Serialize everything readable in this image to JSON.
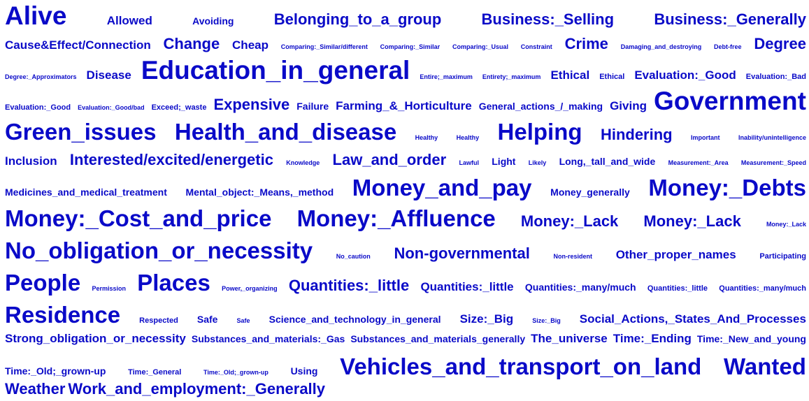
{
  "tag_cloud": {
    "color": "#0a0ac8",
    "rows": [
      [
        [
          "Alive",
          8
        ],
        [
          "Allowed",
          4
        ],
        [
          "Avoiding",
          3
        ],
        [
          "Belonging_to_a_group",
          5
        ],
        [
          "Business:_Selling",
          5
        ],
        [
          "Business:_Generally",
          5
        ]
      ],
      [
        [
          "Cause&Effect/Connection",
          4
        ],
        [
          "Change",
          5
        ],
        [
          "Cheap",
          4
        ],
        [
          "Comparing:_Similar/different",
          1
        ],
        [
          "Comparing:_Similar",
          1
        ],
        [
          "Comparing:_Usual",
          1
        ],
        [
          "Constraint",
          1
        ],
        [
          "Crime",
          5
        ],
        [
          "Damaging_and_destroying",
          1
        ],
        [
          "Debt-free",
          1
        ],
        [
          "Degree",
          5
        ]
      ],
      [
        [
          "Degree:_Approximators",
          1
        ],
        [
          "Disease",
          4
        ],
        [
          "Education_in_general",
          8
        ],
        [
          "Entire;_maximum",
          1
        ],
        [
          "Entirety;_maximum",
          1
        ],
        [
          "Ethical",
          4
        ],
        [
          "Ethical",
          2
        ],
        [
          "Evaluation:_Good",
          4
        ],
        [
          "Evaluation:_Bad",
          2
        ]
      ],
      [
        [
          "Evaluation:_Good",
          2
        ],
        [
          "Evaluation:_Good/bad",
          1
        ],
        [
          "Exceed;_waste",
          2
        ],
        [
          "Expensive",
          5
        ],
        [
          "Failure",
          3
        ],
        [
          "Farming_&_Horticulture",
          4
        ],
        [
          "General_actions_/_making",
          3
        ],
        [
          "Giving",
          4
        ],
        [
          "Government",
          8
        ]
      ],
      [
        [
          "Green_issues",
          7
        ],
        [
          "Health_and_disease",
          7
        ],
        [
          "Healthy",
          1
        ],
        [
          "Healthy",
          1
        ],
        [
          "Helping",
          7
        ],
        [
          "Hindering",
          5
        ],
        [
          "Important",
          1
        ],
        [
          "Inability/unintelligence",
          1
        ]
      ],
      [
        [
          "Inclusion",
          4
        ],
        [
          "Interested/excited/energetic",
          5
        ],
        [
          "Knowledge",
          1
        ],
        [
          "Law_and_order",
          5
        ],
        [
          "Lawful",
          1
        ],
        [
          "Light",
          3
        ],
        [
          "Likely",
          1
        ],
        [
          "Long,_tall_and_wide",
          3
        ],
        [
          "Measurement:_Area",
          1
        ],
        [
          "Measurement:_Speed",
          1
        ]
      ],
      [
        [
          "Medicines_and_medical_treatment",
          3
        ],
        [
          "Mental_object:_Means,_method",
          3
        ],
        [
          "Money_and_pay",
          7
        ],
        [
          "Money_generally",
          3
        ],
        [
          "Money:_Debts",
          7
        ]
      ],
      [
        [
          "Money:_Cost_and_price",
          7
        ],
        [
          "Money:_Affluence",
          7
        ],
        [
          "Money:_Lack",
          5
        ],
        [
          "Money:_Lack",
          5
        ],
        [
          "Money:_Lack",
          1
        ]
      ],
      [
        [
          "No_obligation_or_necessity",
          7
        ],
        [
          "No_caution",
          1
        ],
        [
          "Non-governmental",
          5
        ],
        [
          "Non-resident",
          1
        ],
        [
          "Other_proper_names",
          4
        ],
        [
          "Participating",
          2
        ]
      ],
      [
        [
          "People",
          7
        ],
        [
          "Permission",
          1
        ],
        [
          "Places",
          7
        ],
        [
          "Power,_organizing",
          1
        ],
        [
          "Quantities:_little",
          5
        ],
        [
          "Quantities:_little",
          4
        ],
        [
          "Quantities:_many/much",
          3
        ],
        [
          "Quantities:_little",
          2
        ],
        [
          "Quantities:_many/much",
          2
        ]
      ],
      [
        [
          "Residence",
          7
        ],
        [
          "Respected",
          2
        ],
        [
          "Safe",
          3
        ],
        [
          "Safe",
          1
        ],
        [
          "Science_and_technology_in_general",
          3
        ],
        [
          "Size:_Big",
          4
        ],
        [
          "Size:_Big",
          1
        ],
        [
          "Social_Actions,_States_And_Processes",
          4
        ]
      ],
      [
        [
          "Strong_obligation_or_necessity",
          4
        ],
        [
          "Substances_and_materials:_Gas",
          3
        ],
        [
          "Substances_and_materials_generally",
          3
        ],
        [
          "The_universe",
          4
        ],
        [
          "Time:_Ending",
          4
        ],
        [
          "Time:_New_and_young",
          3
        ]
      ],
      [
        [
          "Time:_Old;_grown-up",
          3
        ],
        [
          "Time:_General",
          2
        ],
        [
          "Time:_Old;_grown-up",
          1
        ],
        [
          "Using",
          3
        ],
        [
          "Vehicles_and_transport_on_land",
          7
        ],
        [
          "Wanted",
          7
        ]
      ],
      [
        [
          "Weather",
          5
        ],
        [
          "Work_and_employment:_Generally",
          5
        ]
      ]
    ]
  }
}
